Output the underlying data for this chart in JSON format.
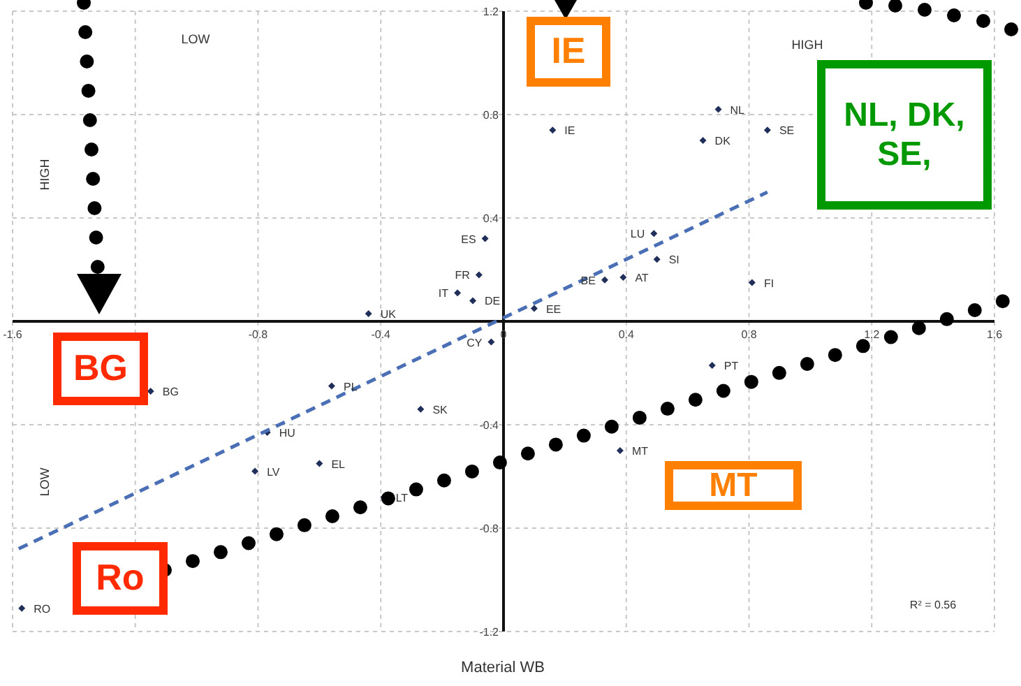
{
  "chart_data": {
    "type": "scatter",
    "xlabel": "Material WB",
    "x": [
      -0.44,
      -0.06,
      -0.08,
      -0.15,
      -0.1,
      -0.04,
      0.1,
      0.33,
      0.39,
      0.5,
      0.49,
      0.81,
      0.16,
      0.7,
      0.65,
      0.86,
      0.68,
      0.38,
      -1.15,
      -0.56,
      -0.27,
      -0.77,
      -0.81,
      -0.6,
      -0.39,
      -1.57
    ],
    "series": [
      {
        "color": "#1f2f5a",
        "marker": "diamond",
        "values": [
          0.03,
          0.32,
          0.18,
          0.11,
          0.08,
          -0.08,
          0.05,
          0.16,
          0.17,
          0.24,
          0.34,
          0.15,
          0.74,
          0.82,
          0.7,
          0.74,
          -0.17,
          -0.5,
          -0.27,
          -0.25,
          -0.34,
          -0.43,
          -0.58,
          -0.55,
          -0.68,
          -1.11
        ],
        "value_labels": [
          "UK",
          "ES",
          "FR",
          "IT",
          "DE",
          "CY",
          "EE",
          "BE",
          "AT",
          "SI",
          "LU",
          "FI",
          "IE",
          "NL",
          "DK",
          "SE",
          "PT",
          "MT",
          "BG",
          "PL",
          "SK",
          "HU",
          "LV",
          "EL",
          "LT",
          "RO"
        ]
      },
      {
        "type": "line",
        "color": "#4a6fb5",
        "line_style": "dashed",
        "marker": "none",
        "x": [
          -1.58,
          0.86
        ],
        "values": [
          -0.88,
          0.5
        ]
      }
    ],
    "xlim": [
      -1.6,
      1.6
    ],
    "xticks": [
      -1.6,
      {
        "value": -1.2,
        "label": null
      },
      -0.8,
      -0.4,
      0,
      0.4,
      0.8,
      1.2,
      1.6
    ],
    "ylim": [
      -1.2,
      1.2
    ],
    "yticks": [
      1.2,
      0.8,
      0.4,
      {
        "value": 0,
        "label": null
      },
      -0.4,
      -0.8,
      -1.2
    ],
    "grid": true,
    "legend": false,
    "annotations": [
      "LOW",
      "HIGH",
      "HIGH",
      "LOW",
      "R² = 0.56",
      "IE",
      "NL, DK, SE,",
      "BG",
      "Ro",
      "MT"
    ]
  }
}
